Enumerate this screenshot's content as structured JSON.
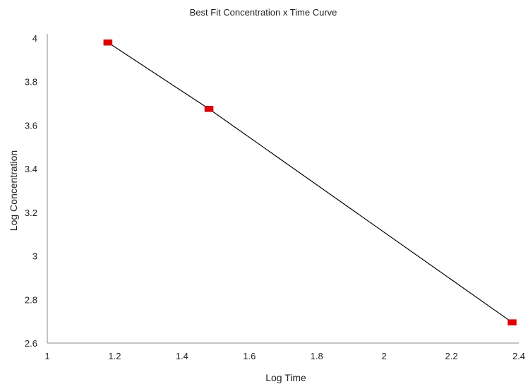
{
  "chart_data": {
    "type": "scatter",
    "title": "Best Fit Concentration x Time Curve",
    "xlabel": "Log Time",
    "ylabel": "Log Concentration",
    "xlim": [
      1,
      2.4
    ],
    "ylim": [
      2.6,
      4
    ],
    "x_ticks": [
      "1",
      "1.2",
      "1.4",
      "1.6",
      "1.8",
      "2",
      "2.2",
      "2.4"
    ],
    "y_ticks": [
      "2.6",
      "2.8",
      "3",
      "3.2",
      "3.4",
      "3.6",
      "3.8",
      "4"
    ],
    "grid": false,
    "legend": "none",
    "marker_color": "#e00000",
    "line_color": "#000000",
    "series": [
      {
        "points": [
          {
            "x": 1.18,
            "y": 3.98
          },
          {
            "x": 1.48,
            "y": 3.675
          },
          {
            "x": 2.38,
            "y": 2.695
          }
        ]
      }
    ],
    "fit_line": [
      {
        "x": 1.18,
        "y": 3.98
      },
      {
        "x": 1.48,
        "y": 3.675
      },
      {
        "x": 2.38,
        "y": 2.695
      }
    ]
  }
}
